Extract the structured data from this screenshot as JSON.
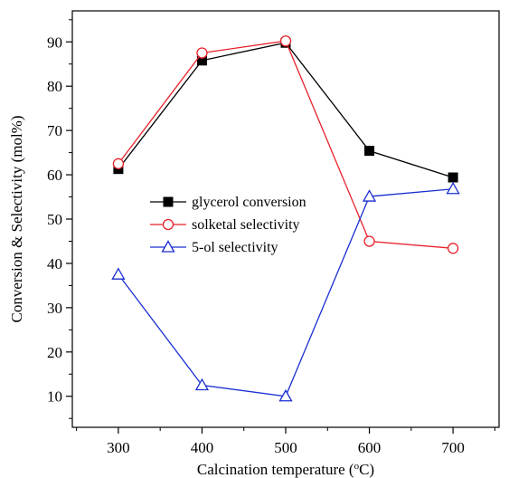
{
  "chart_data": {
    "type": "line",
    "x": [
      300,
      400,
      500,
      600,
      700
    ],
    "series": [
      {
        "name": "glycerol conversion",
        "values": [
          61.3,
          85.8,
          89.8,
          65.4,
          59.4
        ],
        "color": "#000000",
        "marker": "square-filled"
      },
      {
        "name": "solketal selectivity",
        "values": [
          62.5,
          87.5,
          90.2,
          45.0,
          43.4
        ],
        "color": "#e8202a",
        "marker": "circle-open"
      },
      {
        "name": "5-ol selectivity",
        "values": [
          37.5,
          12.5,
          10.0,
          55.1,
          56.8
        ],
        "color": "#1a2fd0",
        "marker": "triangle-open"
      }
    ],
    "xlabel_parts": [
      "Calcination temperature (",
      "o",
      "C)"
    ],
    "ylabel": "Conversion & Selectivity (mol%)",
    "xlim": [
      245,
      755
    ],
    "ylim": [
      3,
      97
    ],
    "xticks": [
      300,
      400,
      500,
      600,
      700
    ],
    "yticks": [
      10,
      20,
      30,
      40,
      50,
      60,
      70,
      80,
      90
    ],
    "grid": false,
    "legend_position": "center-left"
  }
}
